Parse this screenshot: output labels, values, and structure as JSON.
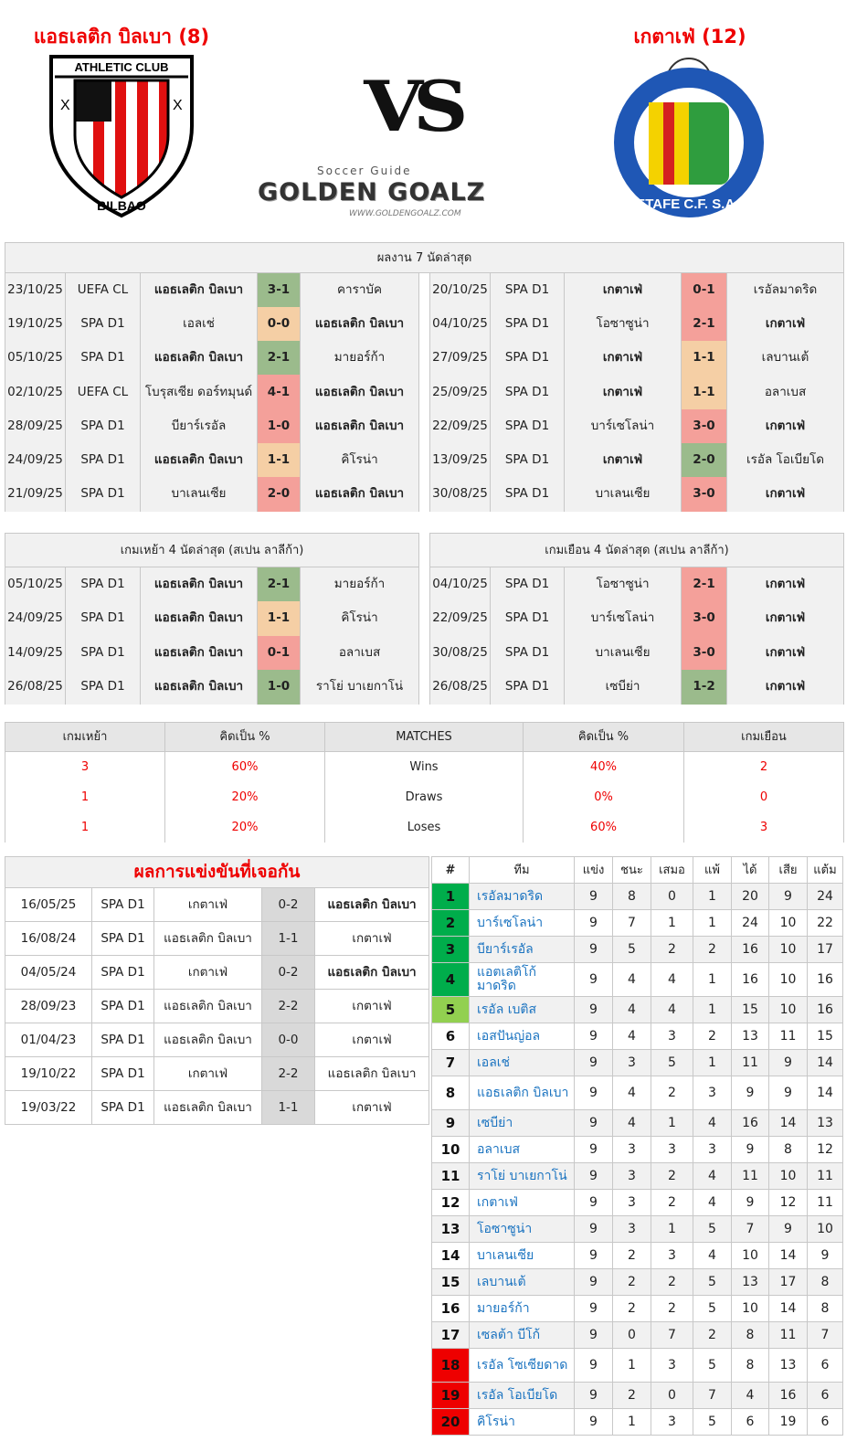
{
  "header": {
    "home_name": "แอธเลติก บิลเบา (8)",
    "away_name": "เกตาเฟ่ (12)",
    "vs": "VS"
  },
  "logos": {
    "home_text_top": "ATHLETIC CLUB",
    "home_text_bottom": "BILBAO",
    "brand_small": "Soccer Guide",
    "brand_big": "GOLDEN GOALZ",
    "brand_url": "WWW.GOLDENGOALZ.COM",
    "away_text": "GETAFE C.F. S.A.D."
  },
  "recent": {
    "title": "ผลงาน 7 นัดล่าสุด",
    "home": [
      {
        "date": "23/10/25",
        "comp": "UEFA CL",
        "home": "แอธเลติก บิลเบา",
        "score": "3-1",
        "away": "คาราบัค",
        "res": "W",
        "hb": true
      },
      {
        "date": "19/10/25",
        "comp": "SPA D1",
        "home": "เอลเช่",
        "score": "0-0",
        "away": "แอธเลติก บิลเบา",
        "res": "D",
        "hb": false
      },
      {
        "date": "05/10/25",
        "comp": "SPA D1",
        "home": "แอธเลติก บิลเบา",
        "score": "2-1",
        "away": "มายอร์ก้า",
        "res": "W",
        "hb": true
      },
      {
        "date": "02/10/25",
        "comp": "UEFA CL",
        "home": "โบรุสเซีย ดอร์ทมุนด์",
        "score": "4-1",
        "away": "แอธเลติก บิลเบา",
        "res": "L",
        "hb": false
      },
      {
        "date": "28/09/25",
        "comp": "SPA D1",
        "home": "บียาร์เรอัล",
        "score": "1-0",
        "away": "แอธเลติก บิลเบา",
        "res": "L",
        "hb": false
      },
      {
        "date": "24/09/25",
        "comp": "SPA D1",
        "home": "แอธเลติก บิลเบา",
        "score": "1-1",
        "away": "คิโรน่า",
        "res": "D",
        "hb": true
      },
      {
        "date": "21/09/25",
        "comp": "SPA D1",
        "home": "บาเลนเซีย",
        "score": "2-0",
        "away": "แอธเลติก บิลเบา",
        "res": "L",
        "hb": false
      }
    ],
    "away": [
      {
        "date": "20/10/25",
        "comp": "SPA D1",
        "home": "เกตาเฟ่",
        "score": "0-1",
        "away": "เรอัลมาดริด",
        "res": "L",
        "hb": true
      },
      {
        "date": "04/10/25",
        "comp": "SPA D1",
        "home": "โอซาซูน่า",
        "score": "2-1",
        "away": "เกตาเฟ่",
        "res": "L",
        "hb": false
      },
      {
        "date": "27/09/25",
        "comp": "SPA D1",
        "home": "เกตาเฟ่",
        "score": "1-1",
        "away": "เลบานเต้",
        "res": "D",
        "hb": true
      },
      {
        "date": "25/09/25",
        "comp": "SPA D1",
        "home": "เกตาเฟ่",
        "score": "1-1",
        "away": "อลาเบส",
        "res": "D",
        "hb": true
      },
      {
        "date": "22/09/25",
        "comp": "SPA D1",
        "home": "บาร์เซโลน่า",
        "score": "3-0",
        "away": "เกตาเฟ่",
        "res": "L",
        "hb": false
      },
      {
        "date": "13/09/25",
        "comp": "SPA D1",
        "home": "เกตาเฟ่",
        "score": "2-0",
        "away": "เรอัล โอเบียโด",
        "res": "W",
        "hb": true
      },
      {
        "date": "30/08/25",
        "comp": "SPA D1",
        "home": "บาเลนเซีย",
        "score": "3-0",
        "away": "เกตาเฟ่",
        "res": "L",
        "hb": false
      }
    ]
  },
  "venue": {
    "home_title": "เกมเหย้า 4 นัดล่าสุด (สเปน ลาลีก้า)",
    "away_title": "เกมเยือน 4 นัดล่าสุด (สเปน ลาลีก้า)",
    "home": [
      {
        "date": "05/10/25",
        "comp": "SPA D1",
        "home": "แอธเลติก บิลเบา",
        "score": "2-1",
        "away": "มายอร์ก้า",
        "res": "W",
        "hb": true
      },
      {
        "date": "24/09/25",
        "comp": "SPA D1",
        "home": "แอธเลติก บิลเบา",
        "score": "1-1",
        "away": "คิโรน่า",
        "res": "D",
        "hb": true
      },
      {
        "date": "14/09/25",
        "comp": "SPA D1",
        "home": "แอธเลติก บิลเบา",
        "score": "0-1",
        "away": "อลาเบส",
        "res": "L",
        "hb": true
      },
      {
        "date": "26/08/25",
        "comp": "SPA D1",
        "home": "แอธเลติก บิลเบา",
        "score": "1-0",
        "away": "ราโย่ บาเยกาโน่",
        "res": "W",
        "hb": true
      }
    ],
    "away": [
      {
        "date": "04/10/25",
        "comp": "SPA D1",
        "home": "โอซาซูน่า",
        "score": "2-1",
        "away": "เกตาเฟ่",
        "res": "L",
        "hb": false
      },
      {
        "date": "22/09/25",
        "comp": "SPA D1",
        "home": "บาร์เซโลน่า",
        "score": "3-0",
        "away": "เกตาเฟ่",
        "res": "L",
        "hb": false
      },
      {
        "date": "30/08/25",
        "comp": "SPA D1",
        "home": "บาเลนเซีย",
        "score": "3-0",
        "away": "เกตาเฟ่",
        "res": "L",
        "hb": false
      },
      {
        "date": "26/08/25",
        "comp": "SPA D1",
        "home": "เซบีย่า",
        "score": "1-2",
        "away": "เกตาเฟ่",
        "res": "W",
        "hb": false
      }
    ]
  },
  "stats": {
    "headers": [
      "เกมเหย้า",
      "คิดเป็น %",
      "MATCHES",
      "คิดเป็น %",
      "เกมเยือน"
    ],
    "rows": [
      [
        "3",
        "60%",
        "Wins",
        "40%",
        "2"
      ],
      [
        "1",
        "20%",
        "Draws",
        "0%",
        "0"
      ],
      [
        "1",
        "20%",
        "Loses",
        "60%",
        "3"
      ]
    ]
  },
  "h2h": {
    "title": "ผลการแข่งขันที่เจอกัน",
    "rows": [
      {
        "date": "16/05/25",
        "comp": "SPA D1",
        "home": "เกตาเฟ่",
        "score": "0-2",
        "away": "แอธเลติก บิลเบา",
        "w": "a"
      },
      {
        "date": "16/08/24",
        "comp": "SPA D1",
        "home": "แอธเลติก บิลเบา",
        "score": "1-1",
        "away": "เกตาเฟ่",
        "w": ""
      },
      {
        "date": "04/05/24",
        "comp": "SPA D1",
        "home": "เกตาเฟ่",
        "score": "0-2",
        "away": "แอธเลติก บิลเบา",
        "w": "a"
      },
      {
        "date": "28/09/23",
        "comp": "SPA D1",
        "home": "แอธเลติก บิลเบา",
        "score": "2-2",
        "away": "เกตาเฟ่",
        "w": ""
      },
      {
        "date": "01/04/23",
        "comp": "SPA D1",
        "home": "แอธเลติก บิลเบา",
        "score": "0-0",
        "away": "เกตาเฟ่",
        "w": ""
      },
      {
        "date": "19/10/22",
        "comp": "SPA D1",
        "home": "เกตาเฟ่",
        "score": "2-2",
        "away": "แอธเลติก บิลเบา",
        "w": "n"
      },
      {
        "date": "19/03/22",
        "comp": "SPA D1",
        "home": "แอธเลติก บิลเบา",
        "score": "1-1",
        "away": "เกตาเฟ่",
        "w": ""
      }
    ]
  },
  "standings": {
    "headers": [
      "#",
      "ทีม",
      "แข่ง",
      "ชนะ",
      "เสมอ",
      "แพ้",
      "ได้",
      "เสีย",
      "แต้ม"
    ],
    "zone_colors": {
      "c1": "#00ad4b",
      "c2": "#92d050",
      "c3": "#ee0000"
    },
    "rows": [
      [
        "1",
        "เรอัลมาดริด",
        "9",
        "8",
        "0",
        "1",
        "20",
        "9",
        "24",
        "c1"
      ],
      [
        "2",
        "บาร์เซโลน่า",
        "9",
        "7",
        "1",
        "1",
        "24",
        "10",
        "22",
        "c1"
      ],
      [
        "3",
        "บียาร์เรอัล",
        "9",
        "5",
        "2",
        "2",
        "16",
        "10",
        "17",
        "c1"
      ],
      [
        "4",
        "แอตเลติโก้ มาดริด",
        "9",
        "4",
        "4",
        "1",
        "16",
        "10",
        "16",
        "c1"
      ],
      [
        "5",
        "เรอัล เบติส",
        "9",
        "4",
        "4",
        "1",
        "15",
        "10",
        "16",
        "c2"
      ],
      [
        "6",
        "เอสปันญ่อล",
        "9",
        "4",
        "3",
        "2",
        "13",
        "11",
        "15",
        ""
      ],
      [
        "7",
        "เอลเช่",
        "9",
        "3",
        "5",
        "1",
        "11",
        "9",
        "14",
        ""
      ],
      [
        "8",
        "แอธเลติก บิลเบา",
        "9",
        "4",
        "2",
        "3",
        "9",
        "9",
        "14",
        ""
      ],
      [
        "9",
        "เซบีย่า",
        "9",
        "4",
        "1",
        "4",
        "16",
        "14",
        "13",
        ""
      ],
      [
        "10",
        "อลาเบส",
        "9",
        "3",
        "3",
        "3",
        "9",
        "8",
        "12",
        ""
      ],
      [
        "11",
        "ราโย่ บาเยกาโน่",
        "9",
        "3",
        "2",
        "4",
        "11",
        "10",
        "11",
        ""
      ],
      [
        "12",
        "เกตาเฟ่",
        "9",
        "3",
        "2",
        "4",
        "9",
        "12",
        "11",
        ""
      ],
      [
        "13",
        "โอซาซูน่า",
        "9",
        "3",
        "1",
        "5",
        "7",
        "9",
        "10",
        ""
      ],
      [
        "14",
        "บาเลนเซีย",
        "9",
        "2",
        "3",
        "4",
        "10",
        "14",
        "9",
        ""
      ],
      [
        "15",
        "เลบานเต้",
        "9",
        "2",
        "2",
        "5",
        "13",
        "17",
        "8",
        ""
      ],
      [
        "16",
        "มายอร์ก้า",
        "9",
        "2",
        "2",
        "5",
        "10",
        "14",
        "8",
        ""
      ],
      [
        "17",
        "เซลต้า บีโก้",
        "9",
        "0",
        "7",
        "2",
        "8",
        "11",
        "7",
        ""
      ],
      [
        "18",
        "เรอัล โซเซียดาด",
        "9",
        "1",
        "3",
        "5",
        "8",
        "13",
        "6",
        "c3"
      ],
      [
        "19",
        "เรอัล โอเบียโด",
        "9",
        "2",
        "0",
        "7",
        "4",
        "16",
        "6",
        "c3"
      ],
      [
        "20",
        "คิโรน่า",
        "9",
        "1",
        "3",
        "5",
        "6",
        "19",
        "6",
        "c3"
      ]
    ]
  }
}
